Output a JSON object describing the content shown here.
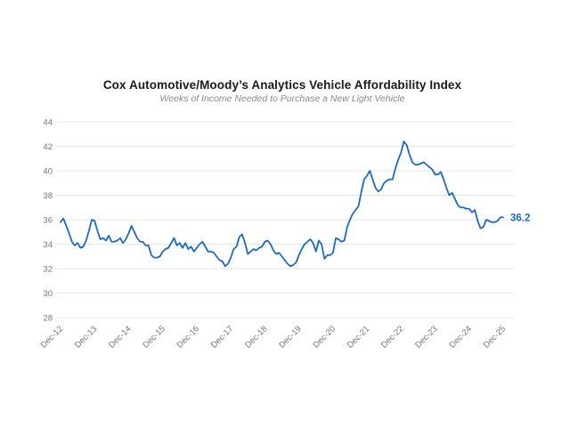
{
  "chart_data": {
    "type": "line",
    "title": "Cox Automotive/Moody’s Analytics Vehicle Affordability Index",
    "subtitle": "Weeks of Income Needed to Purchase a New Light Vehicle",
    "x_frequency": "monthly",
    "x_range": [
      "Dec-12",
      "Dec-25"
    ],
    "x_tick_labels": [
      "Dec-12",
      "Dec-13",
      "Dec-14",
      "Dec-15",
      "Dec-16",
      "Dec-17",
      "Dec-18",
      "Dec-19",
      "Dec-20",
      "Dec-21",
      "Dec-22",
      "Dec-23",
      "Dec-24",
      "Dec-25"
    ],
    "ylim": [
      28,
      44
    ],
    "y_ticks": [
      28,
      30,
      32,
      34,
      36,
      38,
      40,
      42,
      44
    ],
    "grid": "horizontal-only",
    "legend": "none",
    "end_label": "36.2",
    "colors": {
      "line": "#1b69c7",
      "end_label": "#1b69c7",
      "grid": "#e4e4e4",
      "tick_text": "#767676",
      "title_text": "#1a1a1a",
      "subtitle_text": "#8a8a8a",
      "background": "#ffffff"
    },
    "series": [
      {
        "name": "Vehicle Affordability Index",
        "values": [
          35.8,
          36.1,
          35.5,
          34.9,
          34.2,
          33.9,
          34.1,
          33.7,
          33.8,
          34.3,
          35.1,
          36.0,
          35.9,
          35.1,
          34.4,
          34.5,
          34.3,
          34.7,
          34.2,
          34.2,
          34.3,
          34.5,
          34.1,
          34.4,
          34.9,
          35.5,
          35.0,
          34.5,
          34.2,
          34.2,
          33.9,
          33.9,
          33.1,
          32.9,
          32.9,
          33.0,
          33.4,
          33.6,
          33.7,
          34.1,
          34.5,
          33.9,
          34.1,
          33.7,
          34.1,
          33.6,
          33.8,
          33.4,
          33.7,
          34.0,
          34.2,
          33.8,
          33.4,
          33.4,
          33.3,
          33.0,
          32.7,
          32.6,
          32.2,
          32.4,
          32.9,
          33.6,
          33.8,
          34.6,
          34.8,
          34.1,
          33.2,
          33.4,
          33.6,
          33.5,
          33.7,
          33.8,
          34.2,
          34.3,
          34.0,
          33.5,
          33.2,
          33.3,
          33.0,
          32.7,
          32.4,
          32.2,
          32.3,
          32.5,
          33.1,
          33.6,
          34.0,
          34.2,
          34.4,
          34.1,
          33.4,
          34.3,
          34.0,
          32.8,
          33.1,
          33.1,
          33.3,
          34.5,
          34.4,
          34.2,
          34.3,
          35.4,
          36.0,
          36.5,
          36.8,
          37.1,
          38.3,
          39.3,
          39.6,
          40.0,
          39.3,
          38.6,
          38.3,
          38.5,
          39.0,
          39.2,
          39.3,
          39.3,
          40.2,
          40.9,
          41.5,
          42.4,
          42.1,
          41.3,
          40.7,
          40.5,
          40.5,
          40.6,
          40.7,
          40.5,
          40.3,
          40.1,
          39.7,
          39.7,
          39.9,
          39.3,
          38.6,
          38.0,
          38.2,
          37.7,
          37.2,
          37.0,
          37.0,
          36.9,
          36.9,
          36.6,
          36.8,
          35.9,
          35.3,
          35.4,
          36.0,
          35.9,
          35.8,
          35.8,
          35.9,
          36.2,
          36.2
        ]
      }
    ]
  }
}
